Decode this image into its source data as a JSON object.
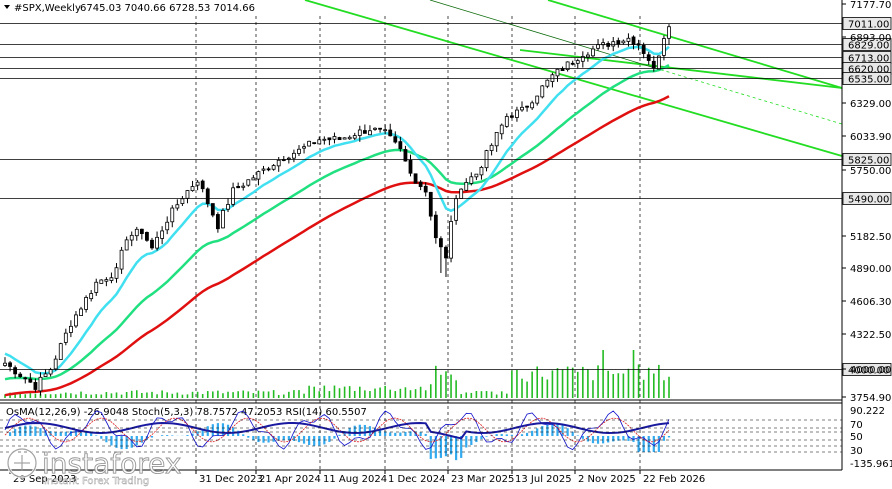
{
  "header": {
    "symbol": "#SPX,Weekly",
    "ohlc": "6745.03 7040.66 6728.53 7014.66"
  },
  "indicator_header": "OsMA(12,26,9) -26.9048  Stoch(5,3,3) 78.7572 47.2053  RSI(14) 60.5507",
  "watermark": {
    "brand": "instaforex",
    "tagline": "Instant Forex Trading"
  },
  "colors": {
    "bg": "#ffffff",
    "candle": "#000000",
    "ema_fast": "#40e0f0",
    "ema_mid": "#20e080",
    "ema_slow": "#e01010",
    "channel": "#22dd22",
    "grid": "#000000",
    "osma": "#33aaee",
    "stoch_main": "#1010cc",
    "stoch_signal": "#dd2222",
    "rsi": "#1a1aa0",
    "volume": "#22bb22"
  },
  "chart_data": {
    "type": "candlestick",
    "price_axis": {
      "min": 3754.9,
      "max": 7177.7,
      "ticks": [
        "7177.70",
        "6893.00",
        "6329.00",
        "6033.90",
        "5750.00",
        "5182.50",
        "4890.00",
        "4606.30",
        "4322.50",
        "4000.00",
        "3754.90"
      ]
    },
    "price_levels": [
      {
        "value": 7011.0,
        "label": "7011.00"
      },
      {
        "value": 6829.0,
        "label": "6829.00"
      },
      {
        "value": 6713.0,
        "label": "6713.00"
      },
      {
        "value": 6620.0,
        "label": "6620.00"
      },
      {
        "value": 6535.0,
        "label": "6535.00"
      },
      {
        "value": 5825.0,
        "label": "5825.00"
      },
      {
        "value": 5490.0,
        "label": "5490.00"
      },
      {
        "value": 4000.0,
        "label": "4000.00"
      }
    ],
    "x_labels": [
      "29 Sep 2023",
      "31 Dec 2023",
      "21 Apr 2024",
      "11 Aug 2024",
      "1 Dec 2024",
      "23 Mar 2025",
      "13 Jul 2025",
      "2 Nov 2025",
      "22 Feb 2026"
    ],
    "key_points": [
      {
        "date": "29 Sep 2023",
        "price": 4200
      },
      {
        "date": "21 Apr 2024",
        "price": 5000
      },
      {
        "date": "11 Aug 2024",
        "price": 5350
      },
      {
        "date": "1 Dec 2024",
        "price": 6050
      },
      {
        "date": "23 Mar 2025",
        "price": 4850
      },
      {
        "date": "13 Jul 2025",
        "price": 6300
      },
      {
        "date": "2 Nov 2025",
        "price": 6850
      },
      {
        "date": "22 Feb 2026",
        "price": 7014.66
      }
    ],
    "indicator_axis": {
      "ticks": [
        "90.222",
        "70",
        "50",
        "30",
        "-135.9617"
      ]
    }
  }
}
